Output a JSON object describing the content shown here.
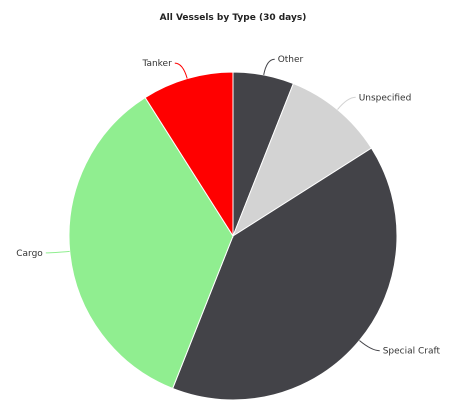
{
  "chart_data": {
    "type": "pie",
    "title": "All Vessels by Type (30 days)",
    "slices": [
      {
        "label": "Other",
        "value": 6,
        "color": "#434348"
      },
      {
        "label": "Unspecified",
        "value": 10,
        "color": "#d3d3d3"
      },
      {
        "label": "Special Craft",
        "value": 40,
        "color": "#434348"
      },
      {
        "label": "Cargo",
        "value": 35,
        "color": "#90ee90"
      },
      {
        "label": "Tanker",
        "value": 9,
        "color": "#ff0000"
      }
    ],
    "start_angle_deg": 0,
    "direction": "clockwise",
    "legend": "none",
    "data_labels": "outside-with-connectors"
  }
}
